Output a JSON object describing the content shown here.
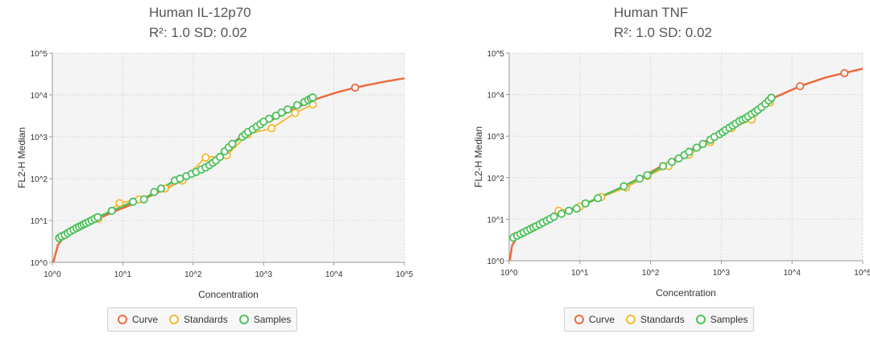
{
  "charts": [
    {
      "title": "Human IL-12p70",
      "subtitle": "R²: 1.0 SD: 0.02"
    },
    {
      "title": "Human TNF",
      "subtitle": "R²: 1.0 SD: 0.02"
    }
  ],
  "legend": [
    {
      "label": "Curve",
      "color": "#ee6a3c"
    },
    {
      "label": "Standards",
      "color": "#f5b731"
    },
    {
      "label": "Samples",
      "color": "#4cbf5b"
    }
  ],
  "chart_data": [
    {
      "type": "line",
      "title": "Human IL-12p70",
      "subtitle": "R²: 1.0 SD: 0.02",
      "xlabel": "Concentration",
      "ylabel": "FL2-H Median",
      "x_scale": "log",
      "y_scale": "log",
      "xlim": [
        1,
        100000
      ],
      "ylim": [
        1,
        100000
      ],
      "x_ticks": [
        "10^0",
        "10^1",
        "10^2",
        "10^3",
        "10^4",
        "10^5"
      ],
      "y_ticks": [
        "10^0",
        "10^1",
        "10^2",
        "10^3",
        "10^4",
        "10^5"
      ],
      "grid": true,
      "legend_position": "bottom",
      "series": [
        {
          "name": "Curve",
          "color": "#ee6a3c",
          "x": [
            1.03,
            1.2,
            1.5,
            2,
            3,
            5,
            8,
            15,
            30,
            60,
            120,
            250,
            500,
            1000,
            2000,
            5000,
            10000,
            20000,
            50000,
            100000
          ],
          "y": [
            1,
            2.6,
            4.2,
            5.8,
            8,
            12,
            17,
            26,
            45,
            80,
            160,
            400,
            1100,
            2000,
            3600,
            7500,
            11000,
            15000,
            20500,
            25000
          ]
        },
        {
          "name": "Standards",
          "color": "#f5b731",
          "x": [
            1.4,
            4.5,
            9,
            17,
            40,
            70,
            150,
            300,
            600,
            1300,
            2800,
            5000
          ],
          "y": [
            4.2,
            11,
            26,
            32,
            58,
            90,
            320,
            360,
            1150,
            1600,
            3700,
            5900
          ]
        },
        {
          "name": "Samples",
          "color": "#4cbf5b",
          "x": [
            1.25,
            1.35,
            1.5,
            1.65,
            1.8,
            2.0,
            2.2,
            2.4,
            2.6,
            2.8,
            3.0,
            3.3,
            3.6,
            4.0,
            4.4,
            7,
            14,
            20,
            28,
            35,
            55,
            65,
            80,
            95,
            110,
            130,
            150,
            170,
            190,
            210,
            240,
            280,
            320,
            360,
            500,
            550,
            600,
            700,
            800,
            900,
            1000,
            1200,
            1500,
            1800,
            2200,
            3000,
            3800,
            4300,
            4700,
            5000
          ],
          "y": [
            3.8,
            4.2,
            4.5,
            5,
            5.5,
            6,
            6.6,
            7.1,
            7.6,
            8.1,
            8.6,
            9.3,
            10,
            11,
            12,
            17,
            28,
            32,
            48,
            58,
            90,
            100,
            115,
            130,
            145,
            165,
            185,
            210,
            240,
            270,
            330,
            450,
            560,
            680,
            1000,
            1150,
            1300,
            1500,
            1750,
            2000,
            2300,
            2700,
            3200,
            3800,
            4500,
            5700,
            6800,
            7600,
            8200,
            8700
          ]
        }
      ]
    },
    {
      "type": "line",
      "title": "Human TNF",
      "subtitle": "R²: 1.0 SD: 0.02",
      "xlabel": "Concentration",
      "ylabel": "FL2-H Median",
      "x_scale": "log",
      "y_scale": "log",
      "xlim": [
        1,
        100000
      ],
      "ylim": [
        1,
        100000
      ],
      "x_ticks": [
        "10^0",
        "10^1",
        "10^2",
        "10^3",
        "10^4",
        "10^5"
      ],
      "y_ticks": [
        "10^0",
        "10^1",
        "10^2",
        "10^3",
        "10^4",
        "10^5"
      ],
      "grid": true,
      "legend_position": "bottom",
      "series": [
        {
          "name": "Curve",
          "color": "#ee6a3c",
          "x": [
            1.02,
            1.1,
            1.3,
            1.7,
            2.5,
            4,
            7,
            12,
            20,
            40,
            80,
            150,
            300,
            600,
            1200,
            2500,
            5000,
            13000,
            30000,
            55000,
            100000
          ],
          "y": [
            1,
            2.3,
            3.7,
            5.5,
            8,
            11,
            16,
            23,
            35,
            60,
            110,
            200,
            380,
            750,
            1600,
            3500,
            7800,
            16000,
            26000,
            33000,
            42000
          ]
        },
        {
          "name": "Standards",
          "color": "#f5b731",
          "x": [
            1.25,
            5,
            10,
            20,
            45,
            90,
            180,
            350,
            700,
            1400,
            2700,
            4900
          ],
          "y": [
            4,
            16,
            20,
            34,
            58,
            110,
            190,
            360,
            720,
            1550,
            2500,
            6500
          ]
        },
        {
          "name": "Samples",
          "color": "#4cbf5b",
          "x": [
            1.15,
            1.3,
            1.45,
            1.6,
            1.8,
            2.0,
            2.2,
            2.4,
            2.7,
            3.0,
            3.4,
            3.8,
            4.3,
            5.5,
            7,
            9,
            12,
            18,
            42,
            70,
            90,
            150,
            200,
            250,
            300,
            350,
            450,
            550,
            700,
            800,
            950,
            1050,
            1150,
            1300,
            1450,
            1600,
            1800,
            2000,
            2200,
            2400,
            2700,
            3000,
            3300,
            3700,
            4200,
            4700,
            5100
          ],
          "y": [
            3.6,
            4,
            4.4,
            4.8,
            5.3,
            5.8,
            6.3,
            6.8,
            7.5,
            8.3,
            9.2,
            10.2,
            11.5,
            13.5,
            16,
            18,
            24,
            32,
            62,
            95,
            115,
            190,
            240,
            290,
            350,
            420,
            530,
            650,
            820,
            960,
            1120,
            1250,
            1400,
            1600,
            1800,
            2000,
            2300,
            2500,
            2700,
            3000,
            3400,
            3800,
            4300,
            5000,
            6000,
            7200,
            8400
          ]
        }
      ]
    }
  ]
}
